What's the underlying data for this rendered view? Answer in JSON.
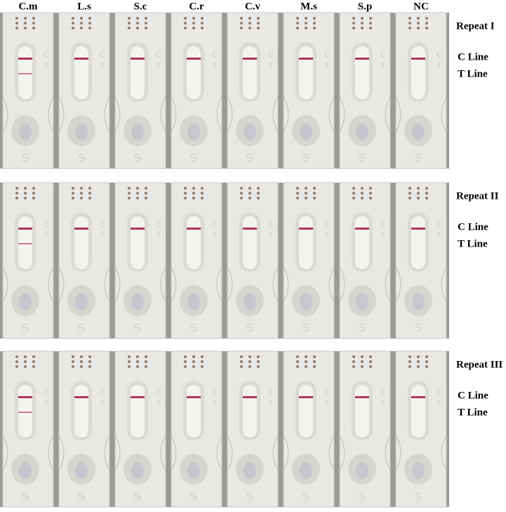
{
  "column_labels": [
    "C.m",
    "L.s",
    "S.c",
    "C.r",
    "C.v",
    "M.s",
    "S.p",
    "NC"
  ],
  "panels": [
    {
      "label": "Repeat I"
    },
    {
      "label": "Repeat II"
    },
    {
      "label": "Repeat III"
    }
  ],
  "line_labels": {
    "c": "C Line",
    "t": "T Line"
  },
  "cassette_marks": {
    "c": "C",
    "t": "T",
    "s": "S"
  }
}
